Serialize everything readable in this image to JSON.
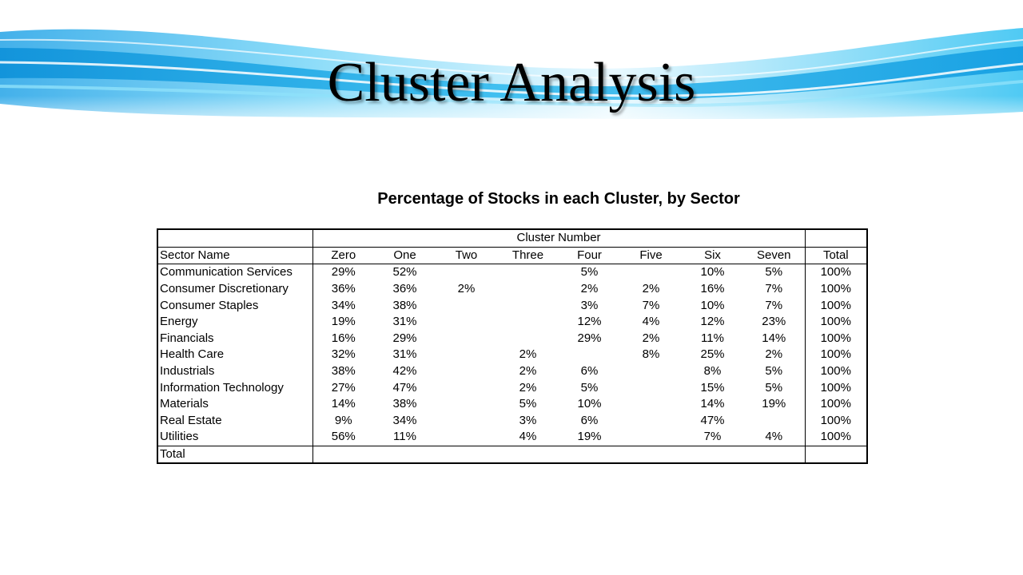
{
  "slide": {
    "title": "Cluster Analysis"
  },
  "table": {
    "caption": "Percentage of Stocks in each Cluster, by Sector",
    "group_header": "Cluster Number",
    "sector_header": "Sector Name",
    "total_header": "Total",
    "cluster_headers": [
      "Zero",
      "One",
      "Two",
      "Three",
      "Four",
      "Five",
      "Six",
      "Seven"
    ],
    "rows": [
      {
        "sector": "Communication Services",
        "values": [
          "29%",
          "52%",
          "",
          "",
          "5%",
          "",
          "10%",
          "5%"
        ],
        "total": "100%"
      },
      {
        "sector": "Consumer Discretionary",
        "values": [
          "36%",
          "36%",
          "2%",
          "",
          "2%",
          "2%",
          "16%",
          "7%"
        ],
        "total": "100%"
      },
      {
        "sector": "Consumer Staples",
        "values": [
          "34%",
          "38%",
          "",
          "",
          "3%",
          "7%",
          "10%",
          "7%"
        ],
        "total": "100%"
      },
      {
        "sector": "Energy",
        "values": [
          "19%",
          "31%",
          "",
          "",
          "12%",
          "4%",
          "12%",
          "23%"
        ],
        "total": "100%"
      },
      {
        "sector": "Financials",
        "values": [
          "16%",
          "29%",
          "",
          "",
          "29%",
          "2%",
          "11%",
          "14%"
        ],
        "total": "100%"
      },
      {
        "sector": "Health Care",
        "values": [
          "32%",
          "31%",
          "",
          "2%",
          "",
          "8%",
          "25%",
          "2%"
        ],
        "total": "100%"
      },
      {
        "sector": "Industrials",
        "values": [
          "38%",
          "42%",
          "",
          "2%",
          "6%",
          "",
          "8%",
          "5%"
        ],
        "total": "100%"
      },
      {
        "sector": "Information Technology",
        "values": [
          "27%",
          "47%",
          "",
          "2%",
          "5%",
          "",
          "15%",
          "5%"
        ],
        "total": "100%"
      },
      {
        "sector": "Materials",
        "values": [
          "14%",
          "38%",
          "",
          "5%",
          "10%",
          "",
          "14%",
          "19%"
        ],
        "total": "100%"
      },
      {
        "sector": "Real Estate",
        "values": [
          "9%",
          "34%",
          "",
          "3%",
          "6%",
          "",
          "47%",
          ""
        ],
        "total": "100%"
      },
      {
        "sector": "Utilities",
        "values": [
          "56%",
          "11%",
          "",
          "4%",
          "19%",
          "",
          "7%",
          "4%"
        ],
        "total": "100%"
      }
    ],
    "total_row_label": "Total"
  },
  "colors": {
    "banner_light": "#bfefff",
    "banner_mid": "#35c3f0",
    "banner_deep": "#0a8fd8",
    "text": "#000000",
    "background": "#ffffff"
  }
}
